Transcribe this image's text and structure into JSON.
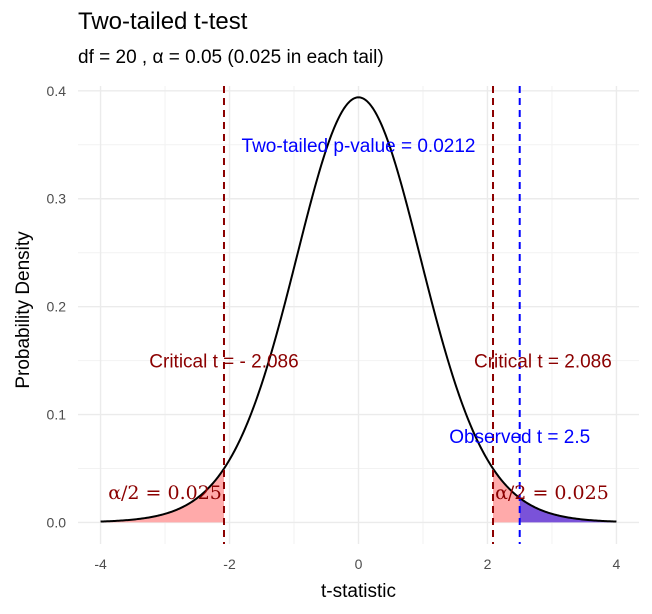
{
  "chart_data": {
    "type": "area",
    "title": "Two-tailed t-test",
    "subtitle": "df = 20 , α = 0.05 (0.025 in each tail)",
    "xlabel": "t-statistic",
    "ylabel": "Probability Density",
    "xlim": [
      -4,
      4
    ],
    "ylim": [
      0,
      0.4
    ],
    "x_ticks": [
      -4,
      -2,
      0,
      2,
      4
    ],
    "y_ticks": [
      0.0,
      0.1,
      0.2,
      0.3,
      0.4
    ],
    "y_tick_labels": [
      "0.0",
      "0.1",
      "0.2",
      "0.3",
      "0.4"
    ],
    "grid": true,
    "df": 20,
    "critical_t": 2.086,
    "observed_t": 2.5,
    "colors": {
      "curve": "#000000",
      "critical_line": "#8b0000",
      "observed_line": "#0000ff",
      "tail_fill": "#ffaaaa",
      "observed_fill": "#7a52d9",
      "critical_text": "#8b0000",
      "observed_text": "#0000ff"
    },
    "annotations": {
      "p_value": "Two-tailed p-value = 0.0212",
      "critical_left": "Critical t = - 2.086",
      "critical_right": "Critical t = 2.086",
      "observed": "Observed t = 2.5",
      "alpha_left": "α/2 = 0.025",
      "alpha_right": "α/2 = 0.025"
    }
  }
}
